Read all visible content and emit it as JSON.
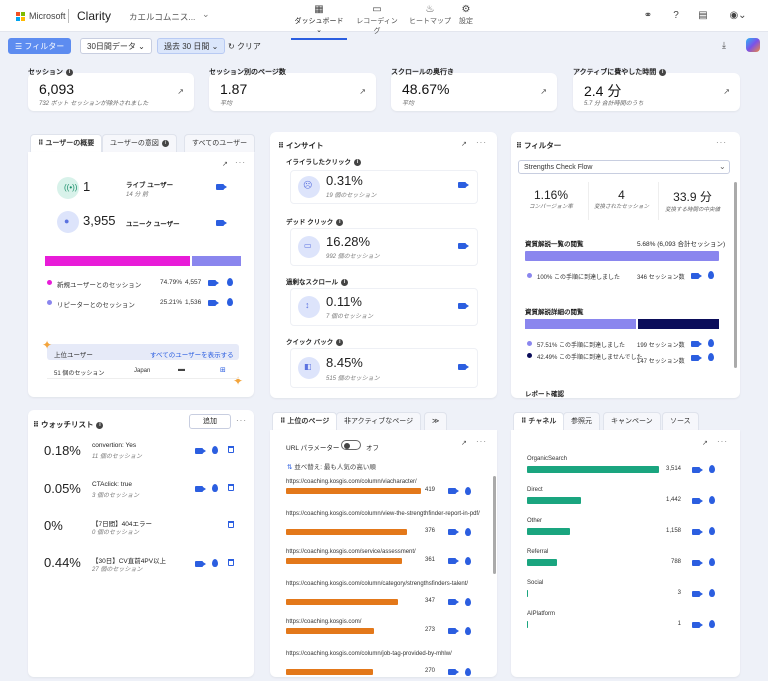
{
  "topbar": {
    "brand": "Microsoft",
    "product": "Clarity",
    "project": "カエルコムニス...",
    "nav": [
      {
        "label": "ダッシュボード",
        "icon": "dashboard-icon"
      },
      {
        "label": "レコーディング",
        "icon": "video-icon"
      },
      {
        "label": "ヒートマップ",
        "icon": "flame-icon"
      },
      {
        "label": "設定",
        "icon": "gear-icon"
      }
    ]
  },
  "toolbar": {
    "filter_label": "フィルター",
    "range_label": "30日間データ",
    "period_label": "過去 30 日間",
    "clear_label": "クリア"
  },
  "kpis": [
    {
      "title": "セッション",
      "value": "6,093",
      "sub": "732 ボット セッションが除外されました"
    },
    {
      "title": "セッション別のページ数",
      "value": "1.87",
      "sub": "平均"
    },
    {
      "title": "スクロールの奥行き",
      "value": "48.67%",
      "sub": "平均"
    },
    {
      "title": "アクティブに費やした時間",
      "value": "2.4 分",
      "sub": "5.7 分 合計時間のうち"
    }
  ],
  "users": {
    "tabs": [
      "ユーザーの概要",
      "ユーザーの意図",
      "すべてのユーザー"
    ],
    "live_value": "1",
    "live_label": "ライブ ユーザー",
    "live_sub": "14 分 前",
    "unique_value": "3,955",
    "unique_label": "ユニーク ユーザー",
    "new_share": 0.7479,
    "rows": [
      {
        "label": "新規ユーザーとのセッション",
        "pct": "74.79%",
        "count": "4,557",
        "color": "#e81cd8"
      },
      {
        "label": "リピーターとのセッション",
        "pct": "25.21%",
        "count": "1,536",
        "color": "#8a86ee"
      }
    ],
    "top_label": "上位ユーザー",
    "top_link": "すべてのユーザーを表示する",
    "top_row": {
      "sessions": "51 個のセッション",
      "country": "Japan"
    }
  },
  "insights": {
    "title": "インサイト",
    "items": [
      {
        "label": "イライラしたクリック",
        "value": "0.31%",
        "sub": "19 個のセッション"
      },
      {
        "label": "デッド クリック",
        "value": "16.28%",
        "sub": "992 個のセッション"
      },
      {
        "label": "過剰なスクロール",
        "value": "0.11%",
        "sub": "7 個のセッション"
      },
      {
        "label": "クイック バック",
        "value": "8.45%",
        "sub": "515 個のセッション"
      }
    ]
  },
  "filters": {
    "title": "フィルター",
    "select": "Strengths Check Flow",
    "stats": [
      {
        "value": "1.16%",
        "label": "コンバージョン率"
      },
      {
        "value": "4",
        "label": "変換されたセッション"
      },
      {
        "value": "33.9 分",
        "label": "変換する時間の中央値"
      }
    ],
    "step1": {
      "title": "資質解説一覧の閲覧",
      "right": "5.68% (6,093 合計セッション)",
      "reached": "100% この手順に到達しました",
      "reached_count": "346 セッション数",
      "reached_share": 1.0
    },
    "step2": {
      "title": "資質解説詳細の閲覧",
      "reached": "57.51% この手順に到達しました",
      "reached_count": "199 セッション数",
      "not_reached": "42.49% この手順に到達しませんでした",
      "not_reached_count": "147 セッション数",
      "reached_share": 0.5751
    },
    "footer": "レポート確認"
  },
  "watchlist": {
    "title": "ウォッチリスト",
    "add_label": "追加",
    "items": [
      {
        "value": "0.18%",
        "label": "convertion: Yes",
        "sub": "11 個のセッション"
      },
      {
        "value": "0.05%",
        "label": "CTAclick: true",
        "sub": "3 個のセッション"
      },
      {
        "value": "0%",
        "label": "【7日間】404エラー",
        "sub": "0 個のセッション"
      },
      {
        "value": "0.44%",
        "label": "【30日】CV直前4PV以上",
        "sub": "27 個のセッション"
      }
    ]
  },
  "pages": {
    "tabs": [
      "上位のページ",
      "非アクティブなページ",
      "≫"
    ],
    "param_label": "URL パラメーター",
    "toggle": "オフ",
    "sort": "並べ替え: 最も人気の高い順",
    "rows": [
      {
        "url": "https://coaching.kosgis.com/column/viacharacter/",
        "count": 419
      },
      {
        "url": "https://coaching.kosgis.com/column/view-the-strengthfinder-report-in-pdf/",
        "count": 376
      },
      {
        "url": "https://coaching.kosgis.com/service/assessment/",
        "count": 361
      },
      {
        "url": "https://coaching.kosgis.com/column/category/strengthsfinders-talent/",
        "count": 347
      },
      {
        "url": "https://coaching.kosgis.com/",
        "count": 273
      },
      {
        "url": "https://coaching.kosgis.com/column/job-tag-provided-by-mhlw/",
        "count": 270
      }
    ]
  },
  "channels": {
    "tabs": [
      "チャネル",
      "参照元",
      "キャンペーン",
      "ソース"
    ],
    "rows": [
      {
        "label": "OrganicSearch",
        "count": 3514
      },
      {
        "label": "Direct",
        "count": 1442
      },
      {
        "label": "Other",
        "count": 1158
      },
      {
        "label": "Referral",
        "count": 788
      },
      {
        "label": "Social",
        "count": 3
      },
      {
        "label": "AIPlatform",
        "count": 1
      }
    ]
  }
}
